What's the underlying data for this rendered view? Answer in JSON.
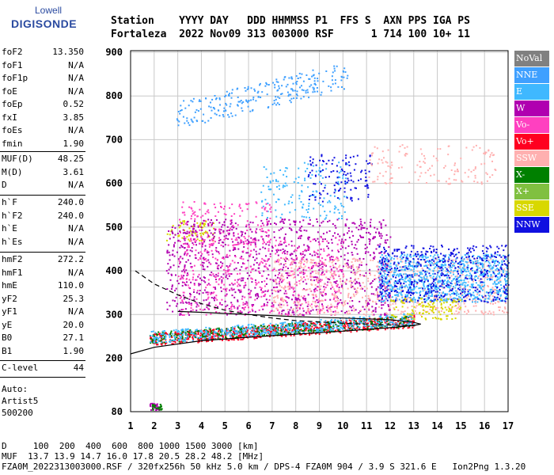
{
  "logo": {
    "line1": "Lowell",
    "line2": "DIGISONDE"
  },
  "header": {
    "line1": "Station    YYYY DAY   DDD HHMMSS P1  FFS S  AXN PPS IGA PS",
    "line2": "Fortaleza  2022 Nov09 313 003000 RSF      1 714 100 10+ 11"
  },
  "params": {
    "group1": [
      {
        "name": "foF2",
        "value": "13.350"
      },
      {
        "name": "foF1",
        "value": "N/A"
      },
      {
        "name": "foF1p",
        "value": "N/A"
      },
      {
        "name": "foE",
        "value": "N/A"
      },
      {
        "name": "foEp",
        "value": "0.52"
      },
      {
        "name": "fxI",
        "value": "3.85"
      },
      {
        "name": "foEs",
        "value": "N/A"
      },
      {
        "name": "fmin",
        "value": "1.90"
      }
    ],
    "group2": [
      {
        "name": "MUF(D)",
        "value": "48.25"
      },
      {
        "name": "M(D)",
        "value": "3.61"
      },
      {
        "name": "D",
        "value": "N/A"
      }
    ],
    "group3": [
      {
        "name": "h`F",
        "value": "240.0"
      },
      {
        "name": "h`F2",
        "value": "240.0"
      },
      {
        "name": "h`E",
        "value": "N/A"
      },
      {
        "name": "h`Es",
        "value": "N/A"
      }
    ],
    "group4": [
      {
        "name": "hmF2",
        "value": "272.2"
      },
      {
        "name": "hmF1",
        "value": "N/A"
      },
      {
        "name": "hmE",
        "value": "110.0"
      },
      {
        "name": "yF2",
        "value": "25.3"
      },
      {
        "name": "yF1",
        "value": "N/A"
      },
      {
        "name": "yE",
        "value": "20.0"
      },
      {
        "name": "B0",
        "value": "27.1"
      },
      {
        "name": "B1",
        "value": "1.90"
      }
    ],
    "group5": [
      {
        "name": "C-level",
        "value": "44"
      }
    ]
  },
  "auto": {
    "line1": "Auto:",
    "line2": "Artist5",
    "line3": "500200"
  },
  "legend": [
    {
      "label": "NoVal",
      "color": "#808080"
    },
    {
      "label": "NNE",
      "color": "#3fa0ff"
    },
    {
      "label": "E",
      "color": "#3fb8ff"
    },
    {
      "label": "W",
      "color": "#b000b0"
    },
    {
      "label": "Vo-",
      "color": "#ff40c0"
    },
    {
      "label": "Vo+",
      "color": "#ff0020"
    },
    {
      "label": "SSW",
      "color": "#ffb0b0"
    },
    {
      "label": "X-",
      "color": "#008000"
    },
    {
      "label": "X+",
      "color": "#80c040"
    },
    {
      "label": "SSE",
      "color": "#d8d800"
    },
    {
      "label": "NNW",
      "color": "#1010e0"
    }
  ],
  "footer": {
    "line1": "D     100  200  400  600  800 1000 1500 3000 [km]",
    "line2": "MUF  13.7 13.9 14.7 16.0 17.8 20.5 28.2 48.2 [MHz]",
    "line3": "FZA0M_2022313003000.RSF / 320fx256h 50 kHz 5.0 km / DPS-4 FZA0M 904 / 3.9 S 321.6 E   Ion2Png 1.3.20"
  },
  "chart_data": {
    "type": "scatter",
    "title": "",
    "xlabel": "",
    "ylabel": "",
    "xlim": [
      1,
      17
    ],
    "ylim": [
      80,
      900
    ],
    "x_ticks": [
      "1",
      "2",
      "3",
      "4",
      "5",
      "6",
      "7",
      "8",
      "9",
      "10",
      "11",
      "12",
      "13",
      "14",
      "15",
      "16",
      "17"
    ],
    "y_ticks": [
      "80",
      "200",
      "300",
      "400",
      "500",
      "600",
      "700",
      "800",
      "900"
    ],
    "grid": true,
    "legend_position": "right",
    "clusters": [
      {
        "series": "NNE",
        "x0": 2.9,
        "x1": 10.2,
        "y0": 725,
        "y1": 880,
        "slope": true,
        "density": 260
      },
      {
        "series": "E",
        "x0": 6.5,
        "x1": 10.2,
        "y0": 520,
        "y1": 650,
        "slope": false,
        "density": 160
      },
      {
        "series": "NNW",
        "x0": 8.5,
        "x1": 11.2,
        "y0": 560,
        "y1": 670,
        "slope": false,
        "density": 120
      },
      {
        "series": "SSW",
        "x0": 11,
        "x1": 16.5,
        "y0": 600,
        "y1": 690,
        "slope": false,
        "density": 140
      },
      {
        "series": "SSE",
        "x0": 2.5,
        "x1": 4.5,
        "y0": 470,
        "y1": 520,
        "slope": false,
        "density": 70
      },
      {
        "series": "Vo-",
        "x0": 3,
        "x1": 7,
        "y0": 460,
        "y1": 560,
        "slope": false,
        "density": 160
      },
      {
        "series": "W",
        "x0": 2.5,
        "x1": 12,
        "y0": 300,
        "y1": 520,
        "slope": false,
        "density": 1100
      },
      {
        "series": "Vo-",
        "x0": 3,
        "x1": 10,
        "y0": 300,
        "y1": 480,
        "slope": false,
        "density": 500
      },
      {
        "series": "SSW",
        "x0": 7,
        "x1": 17,
        "y0": 300,
        "y1": 430,
        "slope": false,
        "density": 700
      },
      {
        "series": "E",
        "x0": 11.5,
        "x1": 17,
        "y0": 330,
        "y1": 440,
        "slope": false,
        "density": 900
      },
      {
        "series": "NNW",
        "x0": 11.5,
        "x1": 17,
        "y0": 330,
        "y1": 460,
        "slope": false,
        "density": 500
      },
      {
        "series": "Vo+",
        "x0": 1.8,
        "x1": 13,
        "y0": 230,
        "y1": 300,
        "slope": true,
        "density": 800
      },
      {
        "series": "X-",
        "x0": 1.8,
        "x1": 13,
        "y0": 235,
        "y1": 300,
        "slope": true,
        "density": 400
      },
      {
        "series": "E",
        "x0": 1.8,
        "x1": 13,
        "y0": 235,
        "y1": 305,
        "slope": true,
        "density": 500
      },
      {
        "series": "SSE",
        "x0": 12,
        "x1": 15,
        "y0": 290,
        "y1": 340,
        "slope": false,
        "density": 120
      },
      {
        "series": "W",
        "x0": 1.8,
        "x1": 2.2,
        "y0": 85,
        "y1": 100,
        "slope": false,
        "density": 40
      },
      {
        "series": "X-",
        "x0": 1.9,
        "x1": 2.3,
        "y0": 85,
        "y1": 100,
        "slope": false,
        "density": 25
      }
    ],
    "solid_curve": [
      [
        1.0,
        210
      ],
      [
        2.0,
        225
      ],
      [
        4,
        240
      ],
      [
        6,
        248
      ],
      [
        8,
        255
      ],
      [
        10,
        262
      ],
      [
        12,
        270
      ],
      [
        13,
        275
      ],
      [
        13.3,
        278
      ],
      [
        13,
        282
      ],
      [
        12,
        288
      ],
      [
        10,
        292
      ],
      [
        8,
        295
      ],
      [
        6,
        300
      ],
      [
        4,
        305
      ],
      [
        3,
        307
      ]
    ],
    "dashed_curve": [
      [
        1.2,
        400
      ],
      [
        2,
        370
      ],
      [
        3,
        345
      ],
      [
        4,
        325
      ],
      [
        5,
        310
      ],
      [
        6,
        300
      ],
      [
        7,
        292
      ],
      [
        8,
        286
      ],
      [
        10,
        280
      ],
      [
        12,
        276
      ],
      [
        13,
        274
      ]
    ]
  }
}
